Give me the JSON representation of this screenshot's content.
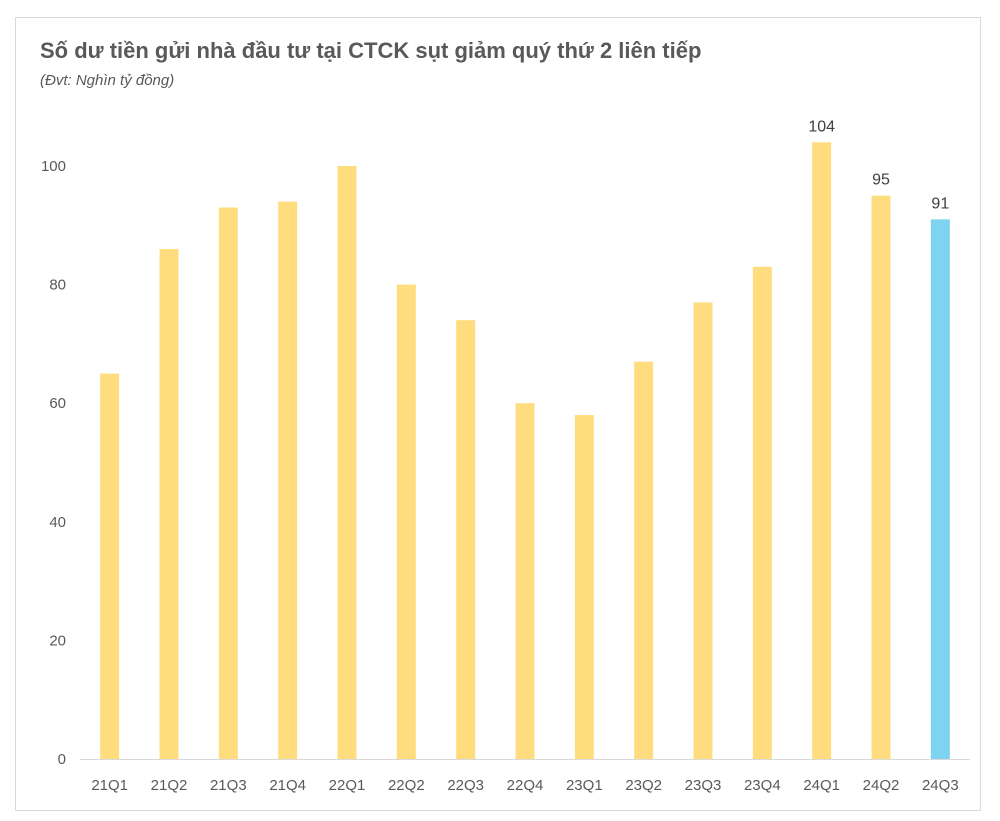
{
  "chart_data": {
    "type": "bar",
    "title": "Số dư tiền gửi nhà đầu tư tại CTCK sụt giảm quý thứ 2 liên tiếp",
    "subtitle": "(Đvt: Nghìn tỷ đồng)",
    "xlabel": "",
    "ylabel": "",
    "categories": [
      "21Q1",
      "21Q2",
      "21Q3",
      "21Q4",
      "22Q1",
      "22Q2",
      "22Q3",
      "22Q4",
      "23Q1",
      "23Q2",
      "23Q3",
      "23Q4",
      "24Q1",
      "24Q2",
      "24Q3"
    ],
    "values": [
      65,
      86,
      93,
      94,
      100,
      80,
      74,
      60,
      58,
      67,
      77,
      83,
      104,
      95,
      91
    ],
    "data_labels": [
      null,
      null,
      null,
      null,
      null,
      null,
      null,
      null,
      null,
      null,
      null,
      null,
      "104",
      "95",
      "91"
    ],
    "ylim": [
      0,
      100
    ],
    "yticks": [
      0,
      20,
      40,
      60,
      80,
      100
    ],
    "grid": false,
    "legend": "none",
    "colors": {
      "default": "#FFDD7F",
      "highlight": "#7DD3F0",
      "highlight_index": 14,
      "axis": "#d9d9d9",
      "text": "#595959"
    }
  }
}
